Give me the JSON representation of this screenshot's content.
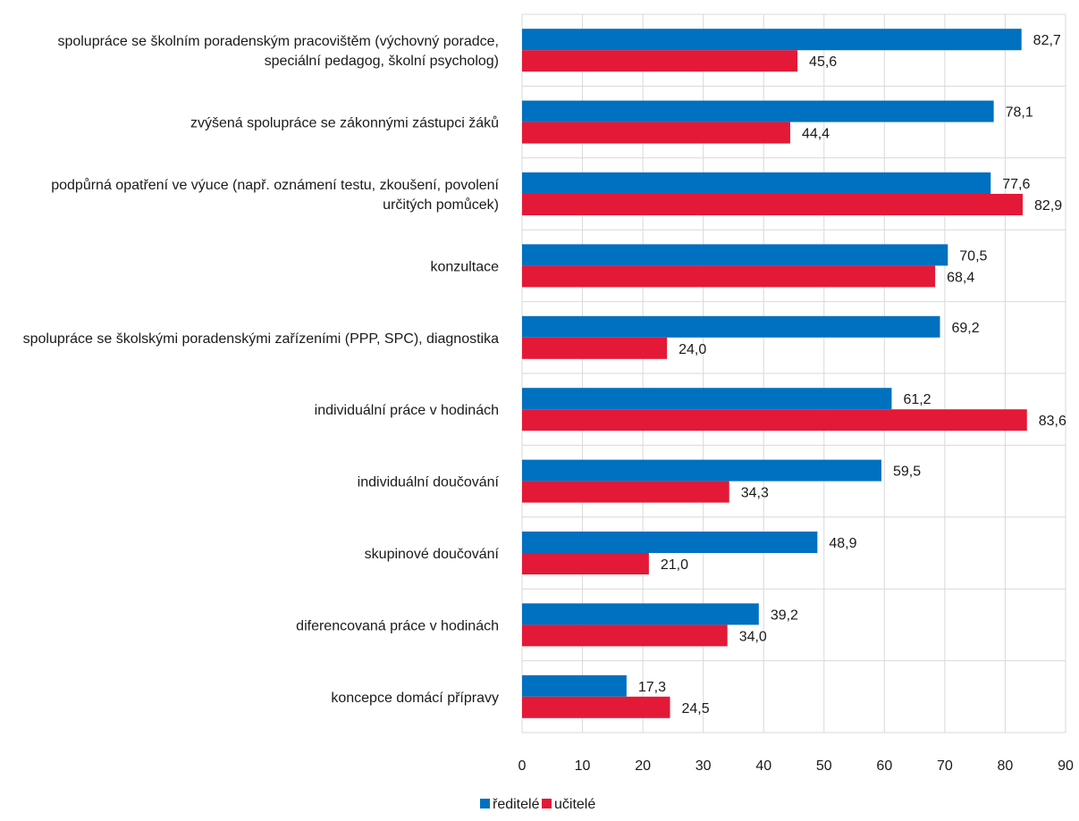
{
  "chart_data": {
    "type": "bar",
    "orientation": "horizontal",
    "categories": [
      [
        "spolupráce se školním poradenským pracovištěm (výchovný poradce,",
        "speciální pedagog, školní psycholog)"
      ],
      [
        "zvýšená spolupráce se zákonnými zástupci žáků"
      ],
      [
        "podpůrná opatření ve výuce (např. oznámení testu, zkoušení, povolení",
        "určitých pomůcek)"
      ],
      [
        "konzultace"
      ],
      [
        "spolupráce se školskými poradenskými zařízeními (PPP, SPC), diagnostika"
      ],
      [
        "individuální práce v hodinách"
      ],
      [
        "individuální doučování"
      ],
      [
        "skupinové doučování"
      ],
      [
        "diferencovaná práce v hodinách"
      ],
      [
        "koncepce domácí přípravy"
      ]
    ],
    "series": [
      {
        "name": "ředitelé",
        "color": "#0070c0",
        "values": [
          82.7,
          78.1,
          77.6,
          70.5,
          69.2,
          61.2,
          59.5,
          48.9,
          39.2,
          17.3
        ],
        "labels": [
          "82,7",
          "78,1",
          "77,6",
          "70,5",
          "69,2",
          "61,2",
          "59,5",
          "48,9",
          "39,2",
          "17,3"
        ]
      },
      {
        "name": "učitelé",
        "color": "#e31937",
        "values": [
          45.6,
          44.4,
          82.9,
          68.4,
          24.0,
          83.6,
          34.3,
          21.0,
          34.0,
          24.5
        ],
        "labels": [
          "45,6",
          "44,4",
          "82,9",
          "68,4",
          "24,0",
          "83,6",
          "34,3",
          "21,0",
          "34,0",
          "24,5"
        ]
      }
    ],
    "xlim": [
      0,
      90
    ],
    "xticks": [
      "0",
      "10",
      "20",
      "30",
      "40",
      "50",
      "60",
      "70",
      "80",
      "90"
    ],
    "grid": true,
    "legend_position": "bottom"
  }
}
